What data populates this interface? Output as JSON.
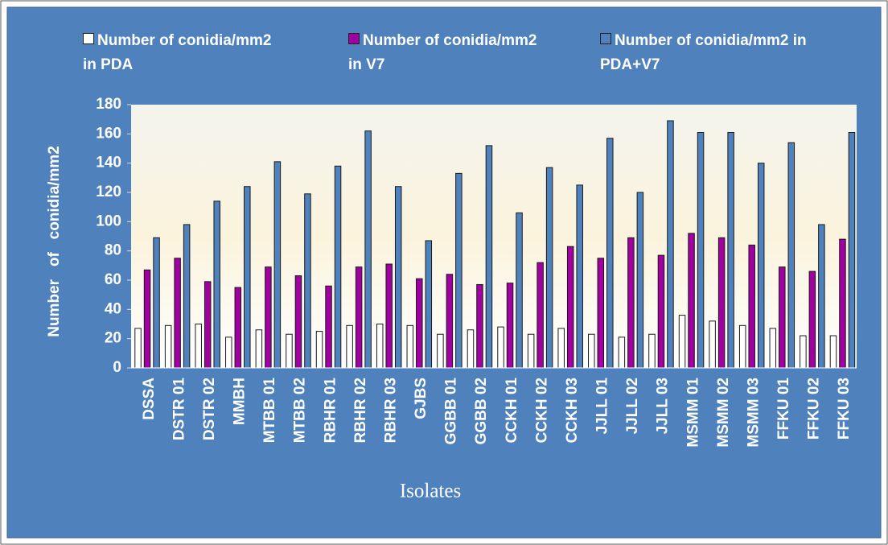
{
  "chart_data": {
    "type": "bar",
    "categories": [
      "DSSA",
      "DSTR 01",
      "DSTR 02",
      "MMBH",
      "MTBB 01",
      "MTBB 02",
      "RBHR 01",
      "RBHR 02",
      "RBHR 03",
      "GJBS",
      "GGBB 01",
      "GGBB 02",
      "CCKH 01",
      "CCKH 02",
      "CCKH 03",
      "JJLL 01",
      "JJLL 02",
      "JJLL 03",
      "MSMM 01",
      "MSMM 02",
      "MSMM 03",
      "FFKU 01",
      "FFKU 02",
      "FFKU 03"
    ],
    "series": [
      {
        "name": "Number of conidia/mm2 in PDA",
        "color": "#ffffff",
        "values": [
          27,
          29,
          30,
          21,
          26,
          23,
          25,
          29,
          30,
          29,
          23,
          26,
          28,
          23,
          27,
          23,
          21,
          23,
          36,
          32,
          29,
          27,
          22,
          22
        ]
      },
      {
        "name": "Number of conidia/mm2 in V7",
        "color": "#a0009f",
        "values": [
          67,
          75,
          59,
          55,
          69,
          63,
          56,
          69,
          71,
          61,
          64,
          57,
          58,
          72,
          83,
          75,
          89,
          77,
          92,
          89,
          84,
          69,
          66,
          88
        ]
      },
      {
        "name": "Number of conidia/mm2 in PDA+V7",
        "color": "#4f81bd",
        "values": [
          89,
          98,
          114,
          124,
          141,
          119,
          138,
          162,
          124,
          87,
          133,
          152,
          106,
          137,
          125,
          157,
          120,
          169,
          161,
          161,
          140,
          154,
          98,
          161
        ]
      }
    ],
    "x_label": "Isolates",
    "y_label": "Number   of   conidia/mm2",
    "ylim": [
      0,
      180
    ],
    "yticks": [
      0,
      20,
      40,
      60,
      80,
      100,
      120,
      140,
      160,
      180
    ],
    "grid": false
  }
}
